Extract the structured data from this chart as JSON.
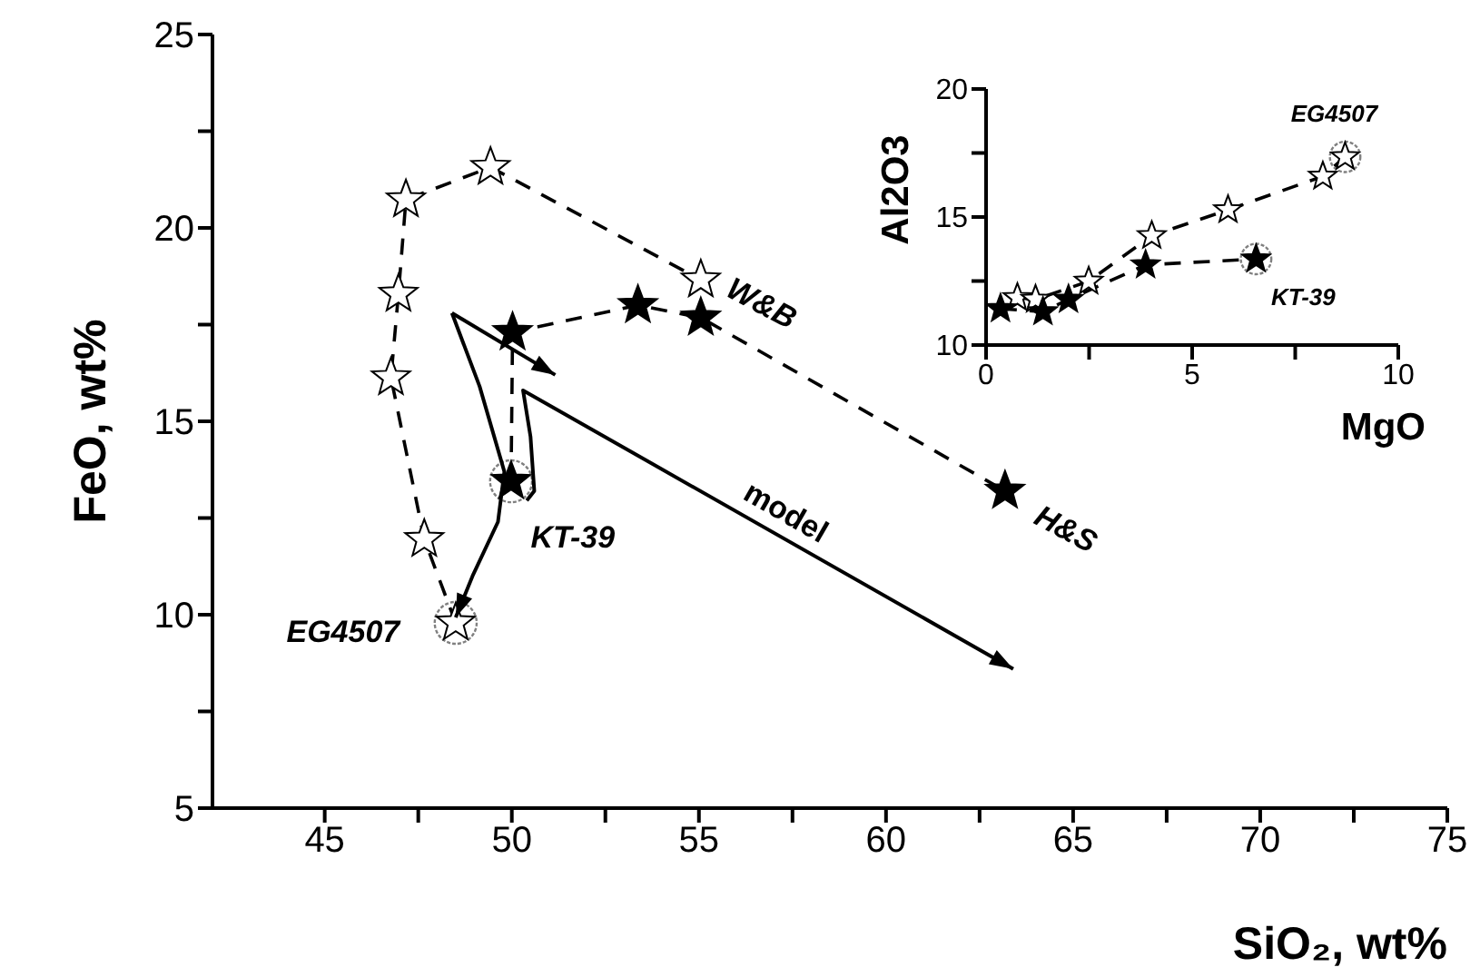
{
  "chart_data": [
    {
      "type": "scatter",
      "xlabel": "SiO₂, wt%",
      "ylabel": "FeO, wt%",
      "xlim": [
        42,
        75
      ],
      "ylim": [
        5,
        25
      ],
      "xticks": [
        45,
        {
          "value": 47.5,
          "label": null
        },
        50,
        {
          "value": 52.5,
          "label": null
        },
        55,
        {
          "value": 57.5,
          "label": null
        },
        60,
        {
          "value": 62.5,
          "label": null
        },
        65,
        {
          "value": 67.5,
          "label": null
        },
        70,
        {
          "value": 72.5,
          "label": null
        },
        75
      ],
      "yticks": [
        5,
        {
          "value": 7.5,
          "label": null
        },
        10,
        {
          "value": 12.5,
          "label": null
        },
        15,
        {
          "value": 17.5,
          "label": null
        },
        20,
        {
          "value": 22.5,
          "label": null
        },
        25
      ],
      "series": [
        {
          "type": "scatter",
          "color": "#808080",
          "marker": "circle",
          "x": [
            48.5,
            49.98
          ],
          "values": [
            9.79,
            13.45
          ]
        },
        {
          "type": "line",
          "name": "W&B",
          "color": "#ffffff",
          "marker": "star",
          "line_style": "dashed",
          "x": [
            48.5,
            47.66,
            46.77,
            46.97,
            47.17,
            49.43,
            55.05
          ],
          "values": [
            9.79,
            11.95,
            16.13,
            18.29,
            20.73,
            21.57,
            18.66
          ]
        },
        {
          "type": "line",
          "name": "H&S",
          "color": "#000000",
          "marker": "star",
          "line_style": "dashed",
          "x": [
            49.98,
            50.02,
            53.37,
            55.05,
            63.18
          ],
          "values": [
            13.45,
            17.3,
            18.0,
            17.68,
            13.2
          ]
        }
      ],
      "annotations": [
        {
          "text": "KT-39",
          "x": 49.98,
          "y": 13.45
        },
        {
          "text": "EG4507",
          "x": 48.5,
          "y": 9.79
        },
        "model"
      ]
    },
    {
      "type": "scatter",
      "xlabel": "MgO",
      "ylabel": "Al2O3",
      "xlim": [
        0,
        10
      ],
      "ylim": [
        10,
        20
      ],
      "xticks": [
        0,
        {
          "value": 2.5,
          "label": null
        },
        5,
        {
          "value": 7.5,
          "label": null
        },
        10
      ],
      "yticks": [
        10,
        {
          "value": 12.5,
          "label": null
        },
        15,
        {
          "value": 17.5,
          "label": null
        },
        20
      ],
      "series": [
        {
          "type": "scatter",
          "color": "#808080",
          "marker": "circle",
          "x": [
            8.71,
            6.55
          ],
          "values": [
            17.35,
            13.36
          ]
        },
        {
          "type": "line",
          "color": "#ffffff",
          "marker": "star",
          "line_style": "dashed",
          "x": [
            0.76,
            1.2,
            2.49,
            4.02,
            5.87,
            8.17,
            8.71
          ],
          "values": [
            11.85,
            11.78,
            12.49,
            14.27,
            15.28,
            16.59,
            17.35
          ]
        },
        {
          "type": "line",
          "color": "#000000",
          "marker": "star",
          "line_style": "dashed",
          "x": [
            0.35,
            1.38,
            2.0,
            3.87,
            6.55
          ],
          "values": [
            11.42,
            11.3,
            11.78,
            13.13,
            13.36
          ]
        }
      ],
      "annotations": [
        {
          "text": "EG4507",
          "x": 8.71,
          "y": 17.35
        },
        {
          "text": "KT-39",
          "x": 6.55,
          "y": 13.36
        }
      ]
    }
  ]
}
